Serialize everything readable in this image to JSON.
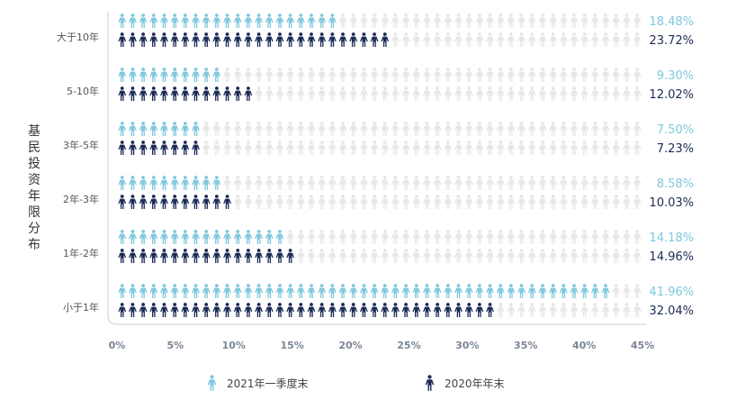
{
  "chart_data": {
    "type": "bar",
    "title": "",
    "ylabel": "基民投资年限分布",
    "xlabel": "",
    "xlim": [
      0,
      45
    ],
    "xticks": [
      "0%",
      "5%",
      "10%",
      "15%",
      "20%",
      "25%",
      "30%",
      "35%",
      "40%",
      "45%"
    ],
    "categories": [
      "大于10年",
      "5-10年",
      "3年-5年",
      "2年-3年",
      "1年-2年",
      "小于1年"
    ],
    "series": [
      {
        "name": "2021年一季度末",
        "color": "#7ec8dd",
        "values": [
          18.48,
          9.3,
          7.5,
          8.58,
          14.18,
          41.96
        ],
        "labels": [
          "18.48%",
          "9.30%",
          "7.50%",
          "8.58%",
          "14.18%",
          "41.96%"
        ]
      },
      {
        "name": "2020年年末",
        "color": "#1b2a56",
        "values": [
          23.72,
          12.02,
          7.23,
          10.03,
          14.96,
          32.04
        ],
        "labels": [
          "23.72%",
          "12.02%",
          "7.23%",
          "10.03%",
          "14.96%",
          "32.04%"
        ]
      }
    ],
    "background_icon_color": "#e6e6e6",
    "grid": false,
    "legend_position": "bottom",
    "icon": "person-icon"
  }
}
